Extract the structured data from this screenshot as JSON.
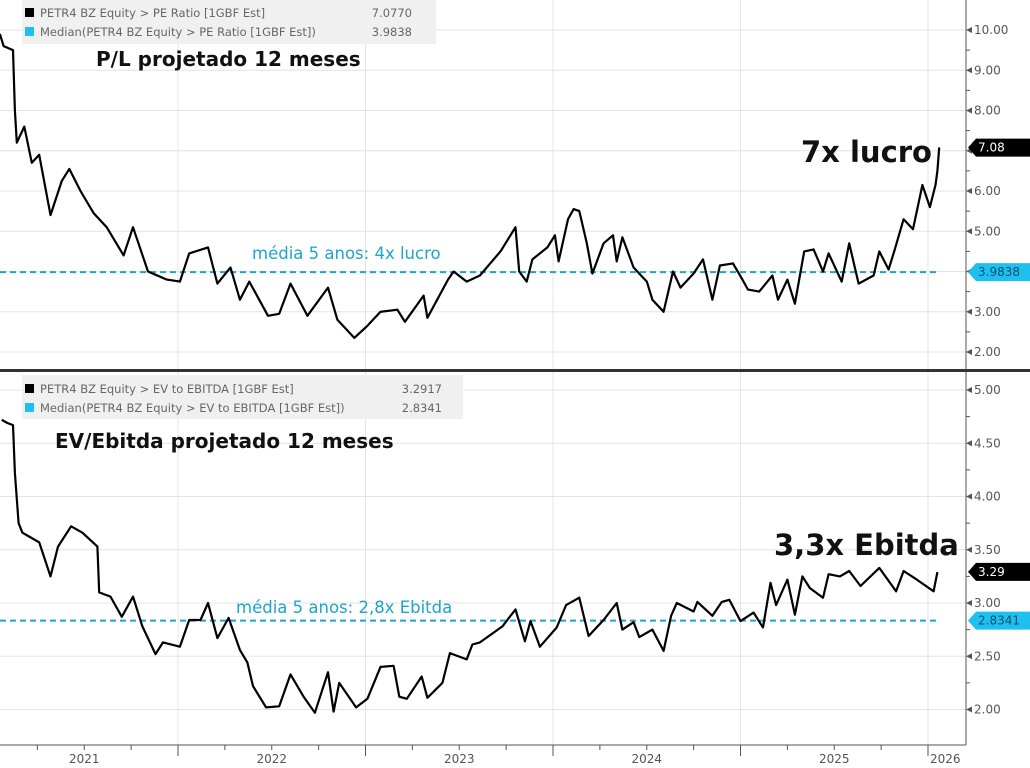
{
  "chart_data": [
    {
      "type": "line",
      "title": "P/L projetado 12 meses",
      "legend": [
        {
          "label": "PETR4 BZ Equity > PE Ratio [1GBF Est]",
          "value": "7.0770",
          "color": "#000000"
        },
        {
          "label": "Median(PETR4 BZ Equity > PE Ratio [1GBF Est])",
          "value": "3.9838",
          "color": "#1ec0f0"
        }
      ],
      "annotation": "7x lucro",
      "median_annotation": "média 5 anos: 4x lucro",
      "last_value_tag": "7.08",
      "median_value_tag": "3.9838",
      "median": 3.9838,
      "last": 7.077,
      "ylim": [
        1.6,
        10.75
      ],
      "yticks": [
        2,
        3,
        4,
        5,
        6,
        7,
        8,
        9,
        10
      ],
      "ytick_labels": [
        "2.00",
        "3.00",
        "",
        "5.00",
        "6.00",
        "",
        "8.00",
        "9.00",
        "10.00"
      ],
      "axis_side": "right",
      "grid": true,
      "series": [
        {
          "name": "PETR4 BZ Equity > PE Ratio [1GBF Est]",
          "points": [
            [
              2021.05,
              9.9
            ],
            [
              2021.07,
              9.6
            ],
            [
              2021.12,
              9.5
            ],
            [
              2021.13,
              8.0
            ],
            [
              2021.14,
              7.2
            ],
            [
              2021.18,
              7.6
            ],
            [
              2021.22,
              6.7
            ],
            [
              2021.26,
              6.9
            ],
            [
              2021.32,
              5.4
            ],
            [
              2021.38,
              6.25
            ],
            [
              2021.42,
              6.55
            ],
            [
              2021.48,
              6.0
            ],
            [
              2021.55,
              5.45
            ],
            [
              2021.62,
              5.1
            ],
            [
              2021.71,
              4.4
            ],
            [
              2021.76,
              5.1
            ],
            [
              2021.84,
              4.0
            ],
            [
              2021.94,
              3.8
            ],
            [
              2022.01,
              3.75
            ],
            [
              2022.06,
              4.45
            ],
            [
              2022.16,
              4.6
            ],
            [
              2022.21,
              3.7
            ],
            [
              2022.28,
              4.1
            ],
            [
              2022.33,
              3.3
            ],
            [
              2022.38,
              3.75
            ],
            [
              2022.48,
              2.9
            ],
            [
              2022.54,
              2.95
            ],
            [
              2022.6,
              3.7
            ],
            [
              2022.69,
              2.9
            ],
            [
              2022.8,
              3.6
            ],
            [
              2022.85,
              2.8
            ],
            [
              2022.94,
              2.35
            ],
            [
              2023.01,
              2.65
            ],
            [
              2023.08,
              3.0
            ],
            [
              2023.17,
              3.05
            ],
            [
              2023.21,
              2.75
            ],
            [
              2023.31,
              3.4
            ],
            [
              2023.33,
              2.85
            ],
            [
              2023.44,
              3.8
            ],
            [
              2023.47,
              4.0
            ],
            [
              2023.54,
              3.75
            ],
            [
              2023.61,
              3.9
            ],
            [
              2023.72,
              4.5
            ],
            [
              2023.8,
              5.1
            ],
            [
              2023.82,
              4.0
            ],
            [
              2023.86,
              3.75
            ],
            [
              2023.89,
              4.3
            ],
            [
              2023.97,
              4.6
            ],
            [
              2024.01,
              4.9
            ],
            [
              2024.03,
              4.25
            ],
            [
              2024.08,
              5.3
            ],
            [
              2024.11,
              5.55
            ],
            [
              2024.14,
              5.5
            ],
            [
              2024.18,
              4.7
            ],
            [
              2024.21,
              3.95
            ],
            [
              2024.27,
              4.7
            ],
            [
              2024.32,
              4.9
            ],
            [
              2024.34,
              4.25
            ],
            [
              2024.37,
              4.85
            ],
            [
              2024.43,
              4.1
            ],
            [
              2024.5,
              3.75
            ],
            [
              2024.53,
              3.3
            ],
            [
              2024.59,
              3.0
            ],
            [
              2024.64,
              4.0
            ],
            [
              2024.68,
              3.6
            ],
            [
              2024.75,
              3.95
            ],
            [
              2024.8,
              4.3
            ],
            [
              2024.85,
              3.3
            ],
            [
              2024.89,
              4.15
            ],
            [
              2024.96,
              4.2
            ],
            [
              2025.01,
              3.8
            ],
            [
              2025.04,
              3.55
            ],
            [
              2025.1,
              3.5
            ],
            [
              2025.17,
              3.9
            ],
            [
              2025.2,
              3.3
            ],
            [
              2025.25,
              3.8
            ],
            [
              2025.29,
              3.2
            ],
            [
              2025.34,
              4.5
            ],
            [
              2025.39,
              4.55
            ],
            [
              2025.44,
              4.0
            ],
            [
              2025.47,
              4.45
            ],
            [
              2025.54,
              3.75
            ],
            [
              2025.58,
              4.7
            ],
            [
              2025.63,
              3.7
            ],
            [
              2025.71,
              3.9
            ],
            [
              2025.74,
              4.5
            ],
            [
              2025.79,
              4.05
            ],
            [
              2025.82,
              4.5
            ],
            [
              2025.87,
              5.3
            ],
            [
              2025.92,
              5.05
            ],
            [
              2025.97,
              6.15
            ],
            [
              2026.01,
              5.6
            ],
            [
              2026.04,
              6.15
            ],
            [
              2026.05,
              6.5
            ],
            [
              2026.06,
              7.08
            ]
          ]
        }
      ]
    },
    {
      "type": "line",
      "title": "EV/Ebitda projetado 12 meses",
      "legend": [
        {
          "label": "PETR4 BZ Equity > EV to EBITDA [1GBF Est]",
          "value": "3.2917",
          "color": "#000000"
        },
        {
          "label": "Median(PETR4 BZ Equity > EV to EBITDA [1GBF Est])",
          "value": "2.8341",
          "color": "#1ec0f0"
        }
      ],
      "annotation": "3,3x Ebitda",
      "median_annotation": "média 5 anos: 2,8x Ebitda",
      "last_value_tag": "3.29",
      "median_value_tag": "2.8341",
      "median": 2.8341,
      "last": 3.2917,
      "ylim": [
        1.67,
        5.1
      ],
      "yticks": [
        2.0,
        2.5,
        3.0,
        3.5,
        4.0,
        4.5,
        5.0
      ],
      "ytick_labels": [
        "2.00",
        "2.50",
        "3.00",
        "3.50",
        "4.00",
        "4.50",
        "5.00"
      ],
      "axis_side": "right",
      "grid": true,
      "series": [
        {
          "name": "PETR4 BZ Equity > EV to EBITDA [1GBF Est]",
          "points": [
            [
              2021.06,
              4.72
            ],
            [
              2021.09,
              4.69
            ],
            [
              2021.12,
              4.67
            ],
            [
              2021.13,
              4.22
            ],
            [
              2021.15,
              3.75
            ],
            [
              2021.17,
              3.66
            ],
            [
              2021.21,
              3.62
            ],
            [
              2021.26,
              3.57
            ],
            [
              2021.32,
              3.25
            ],
            [
              2021.36,
              3.53
            ],
            [
              2021.43,
              3.72
            ],
            [
              2021.49,
              3.66
            ],
            [
              2021.57,
              3.53
            ],
            [
              2021.58,
              3.1
            ],
            [
              2021.64,
              3.06
            ],
            [
              2021.7,
              2.87
            ],
            [
              2021.76,
              3.06
            ],
            [
              2021.81,
              2.78
            ],
            [
              2021.88,
              2.52
            ],
            [
              2021.92,
              2.63
            ],
            [
              2022.01,
              2.59
            ],
            [
              2022.06,
              2.84
            ],
            [
              2022.12,
              2.84
            ],
            [
              2022.16,
              3.0
            ],
            [
              2022.21,
              2.67
            ],
            [
              2022.27,
              2.86
            ],
            [
              2022.33,
              2.56
            ],
            [
              2022.37,
              2.44
            ],
            [
              2022.4,
              2.22
            ],
            [
              2022.47,
              2.02
            ],
            [
              2022.54,
              2.03
            ],
            [
              2022.6,
              2.33
            ],
            [
              2022.67,
              2.12
            ],
            [
              2022.73,
              1.97
            ],
            [
              2022.8,
              2.35
            ],
            [
              2022.83,
              1.98
            ],
            [
              2022.86,
              2.25
            ],
            [
              2022.95,
              2.02
            ],
            [
              2023.01,
              2.1
            ],
            [
              2023.08,
              2.4
            ],
            [
              2023.15,
              2.41
            ],
            [
              2023.18,
              2.12
            ],
            [
              2023.22,
              2.1
            ],
            [
              2023.3,
              2.31
            ],
            [
              2023.33,
              2.11
            ],
            [
              2023.41,
              2.25
            ],
            [
              2023.45,
              2.53
            ],
            [
              2023.54,
              2.47
            ],
            [
              2023.57,
              2.61
            ],
            [
              2023.61,
              2.63
            ],
            [
              2023.73,
              2.78
            ],
            [
              2023.8,
              2.94
            ],
            [
              2023.85,
              2.64
            ],
            [
              2023.88,
              2.83
            ],
            [
              2023.93,
              2.59
            ],
            [
              2024.02,
              2.77
            ],
            [
              2024.07,
              2.98
            ],
            [
              2024.14,
              3.05
            ],
            [
              2024.19,
              2.69
            ],
            [
              2024.27,
              2.84
            ],
            [
              2024.34,
              3.0
            ],
            [
              2024.37,
              2.75
            ],
            [
              2024.43,
              2.82
            ],
            [
              2024.46,
              2.68
            ],
            [
              2024.53,
              2.75
            ],
            [
              2024.59,
              2.55
            ],
            [
              2024.63,
              2.88
            ],
            [
              2024.66,
              3.0
            ],
            [
              2024.75,
              2.92
            ],
            [
              2024.77,
              3.01
            ],
            [
              2024.85,
              2.88
            ],
            [
              2024.9,
              3.01
            ],
            [
              2024.94,
              3.03
            ],
            [
              2025.0,
              2.83
            ],
            [
              2025.07,
              2.91
            ],
            [
              2025.12,
              2.77
            ],
            [
              2025.16,
              3.19
            ],
            [
              2025.19,
              2.98
            ],
            [
              2025.25,
              3.22
            ],
            [
              2025.29,
              2.89
            ],
            [
              2025.33,
              3.25
            ],
            [
              2025.37,
              3.14
            ],
            [
              2025.44,
              3.05
            ],
            [
              2025.47,
              3.27
            ],
            [
              2025.53,
              3.25
            ],
            [
              2025.58,
              3.3
            ],
            [
              2025.64,
              3.16
            ],
            [
              2025.74,
              3.33
            ],
            [
              2025.83,
              3.11
            ],
            [
              2025.87,
              3.3
            ],
            [
              2025.94,
              3.22
            ],
            [
              2026.03,
              3.11
            ],
            [
              2026.05,
              3.29
            ]
          ]
        }
      ]
    }
  ],
  "x_axis": {
    "xlim": [
      2021.05,
      2026.2
    ],
    "year_labels": [
      "2021",
      "2022",
      "2023",
      "2024",
      "2025",
      "2026"
    ]
  }
}
